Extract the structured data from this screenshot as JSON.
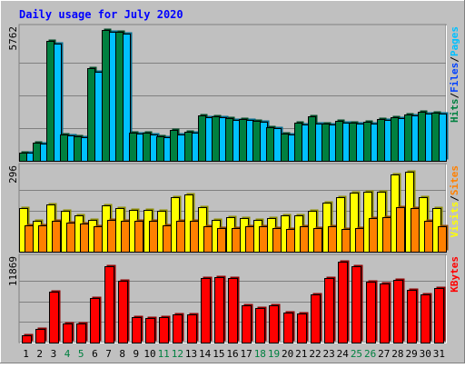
{
  "chart_data": [
    {
      "type": "bar",
      "panel": "hits-files-pages",
      "title": "Daily usage for July 2020",
      "categories": [
        "1",
        "2",
        "3",
        "4",
        "5",
        "6",
        "7",
        "8",
        "9",
        "10",
        "11",
        "12",
        "13",
        "14",
        "15",
        "16",
        "17",
        "18",
        "19",
        "20",
        "21",
        "22",
        "23",
        "24",
        "25",
        "26",
        "27",
        "28",
        "29",
        "30",
        "31"
      ],
      "weekend_days": [
        "4",
        "5",
        "11",
        "12",
        "18",
        "19",
        "25",
        "26"
      ],
      "ymax_label": "5762",
      "ylim": [
        0,
        5762
      ],
      "grid": true,
      "legend": [
        {
          "label": "Pages",
          "color": "#00c0ff"
        },
        {
          "label": "Files",
          "color": "#0040ff"
        },
        {
          "label": "Hits",
          "color": "#008040"
        }
      ],
      "series": [
        {
          "name": "Hits",
          "color": "#008040",
          "values": [
            380,
            820,
            5300,
            1150,
            1100,
            4080,
            5762,
            5700,
            1250,
            1250,
            1100,
            1370,
            1300,
            2000,
            1980,
            1870,
            1830,
            1760,
            1500,
            1200,
            1680,
            1950,
            1650,
            1750,
            1700,
            1720,
            1850,
            1940,
            2050,
            2150,
            2130
          ]
        },
        {
          "name": "Files",
          "color": "#0040ff",
          "values": [
            0,
            0,
            0,
            0,
            0,
            0,
            0,
            0,
            0,
            0,
            0,
            0,
            0,
            0,
            0,
            0,
            0,
            0,
            0,
            0,
            0,
            0,
            0,
            0,
            0,
            0,
            0,
            0,
            0,
            0,
            0
          ]
        },
        {
          "name": "Pages",
          "color": "#00c0ff",
          "values": [
            350,
            750,
            5150,
            1120,
            1050,
            3930,
            5700,
            5620,
            1200,
            1150,
            1050,
            1150,
            1250,
            1920,
            1920,
            1820,
            1790,
            1720,
            1460,
            1150,
            1620,
            1650,
            1620,
            1700,
            1660,
            1660,
            1820,
            1900,
            2010,
            2090,
            2090
          ]
        }
      ]
    },
    {
      "type": "bar",
      "panel": "sites-visits",
      "categories": [
        "1",
        "2",
        "3",
        "4",
        "5",
        "6",
        "7",
        "8",
        "9",
        "10",
        "11",
        "12",
        "13",
        "14",
        "15",
        "16",
        "17",
        "18",
        "19",
        "20",
        "21",
        "22",
        "23",
        "24",
        "25",
        "26",
        "27",
        "28",
        "29",
        "30",
        "31"
      ],
      "ymax_label": "296",
      "ylim": [
        0,
        296
      ],
      "grid": true,
      "legend": [
        {
          "label": "Sites",
          "color": "#ff8000"
        },
        {
          "label": "Visits",
          "color": "#ffff00"
        }
      ],
      "series": [
        {
          "name": "Visits",
          "color": "#ffff00",
          "values": [
            155,
            110,
            170,
            145,
            130,
            115,
            165,
            155,
            150,
            150,
            145,
            195,
            205,
            160,
            115,
            125,
            120,
            115,
            120,
            130,
            130,
            145,
            175,
            195,
            210,
            215,
            215,
            275,
            285,
            195,
            155
          ]
        },
        {
          "name": "Sites",
          "color": "#ff8000",
          "values": [
            95,
            95,
            110,
            105,
            100,
            90,
            115,
            110,
            110,
            110,
            95,
            110,
            110,
            90,
            85,
            85,
            90,
            90,
            85,
            80,
            90,
            85,
            90,
            80,
            85,
            120,
            125,
            160,
            155,
            110,
            90
          ]
        }
      ]
    },
    {
      "type": "bar",
      "panel": "kbytes",
      "categories": [
        "1",
        "2",
        "3",
        "4",
        "5",
        "6",
        "7",
        "8",
        "9",
        "10",
        "11",
        "12",
        "13",
        "14",
        "15",
        "16",
        "17",
        "18",
        "19",
        "20",
        "21",
        "22",
        "23",
        "24",
        "25",
        "26",
        "27",
        "28",
        "29",
        "30",
        "31"
      ],
      "ymax_label": "11869",
      "ylim": [
        0,
        11869
      ],
      "grid": true,
      "legend": [
        {
          "label": "KBytes",
          "color": "#ff0000"
        }
      ],
      "series": [
        {
          "name": "KBytes",
          "color": "#ff0000",
          "values": [
            1000,
            2000,
            7300,
            2800,
            2800,
            6400,
            11000,
            8900,
            3600,
            3500,
            3600,
            4000,
            4100,
            9200,
            9400,
            9300,
            5300,
            4900,
            5300,
            4300,
            4200,
            6900,
            9200,
            11600,
            11000,
            8800,
            8500,
            9000,
            7600,
            6900,
            7800
          ]
        }
      ]
    }
  ],
  "colors": {
    "background": "#c0c0c0",
    "title": "#0000ff",
    "axis_text": "#000000",
    "weekend_text": "#008040",
    "bevel_light": "#ffffff",
    "bevel_dark": "#808080",
    "grid": "#808080"
  },
  "legend_separator": "/"
}
